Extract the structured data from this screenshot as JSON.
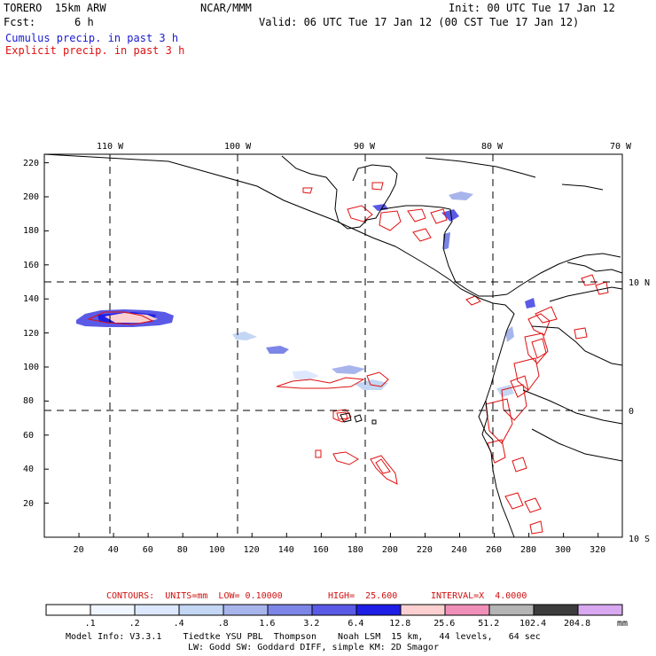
{
  "header": {
    "model": "TORERO  15km ARW",
    "org": "NCAR/MMM",
    "init": "Init: 00 UTC Tue 17 Jan 12",
    "fcst_label": "Fcst:",
    "fcst_value": "6 h",
    "valid": "Valid: 06 UTC Tue 17 Jan 12 (00 CST Tue 17 Jan 12)",
    "field1": "Cumulus precip. in past 3 h",
    "field2": "Explicit precip. in past 3 h"
  },
  "map": {
    "top_labels": [
      "110 W",
      "100 W",
      "90 W",
      "80 W",
      "70 W"
    ],
    "right_labels": [
      "10 N",
      "0",
      "10 S"
    ],
    "y_ticks": [
      20,
      40,
      60,
      80,
      100,
      120,
      140,
      160,
      180,
      200,
      220
    ],
    "x_ticks": [
      20,
      40,
      60,
      80,
      100,
      120,
      140,
      160,
      180,
      200,
      220,
      240,
      260,
      280,
      300,
      320
    ]
  },
  "contour_info": {
    "contours": "CONTOURS:  UNITS=mm  LOW= 0.10000",
    "high": "HIGH=  25.600",
    "interval": "INTERVAL=X  4.0000"
  },
  "colorbar": {
    "colors": [
      "#ffffff",
      "#f0f6ff",
      "#dde8ff",
      "#c3d6f4",
      "#a8b5ec",
      "#7d86e6",
      "#5a5ae6",
      "#1e1ee6",
      "#fcd0d0",
      "#f090b8",
      "#b4b4b4",
      "#3c3c3c",
      "#d8a8f0"
    ],
    "labels": [
      ".1",
      ".2",
      ".4",
      ".8",
      "1.6",
      "3.2",
      "6.4",
      "12.8",
      "25.6",
      "51.2",
      "102.4",
      "204.8"
    ],
    "unit": "mm"
  },
  "footer": {
    "line1": "Model Info: V3.3.1    Tiedtke YSU PBL  Thompson    Noah LSM  15 km,   44 levels,   64 sec",
    "line2": "LW: Godd SW: Goddard DIFF, simple KM: 2D Smagor"
  }
}
